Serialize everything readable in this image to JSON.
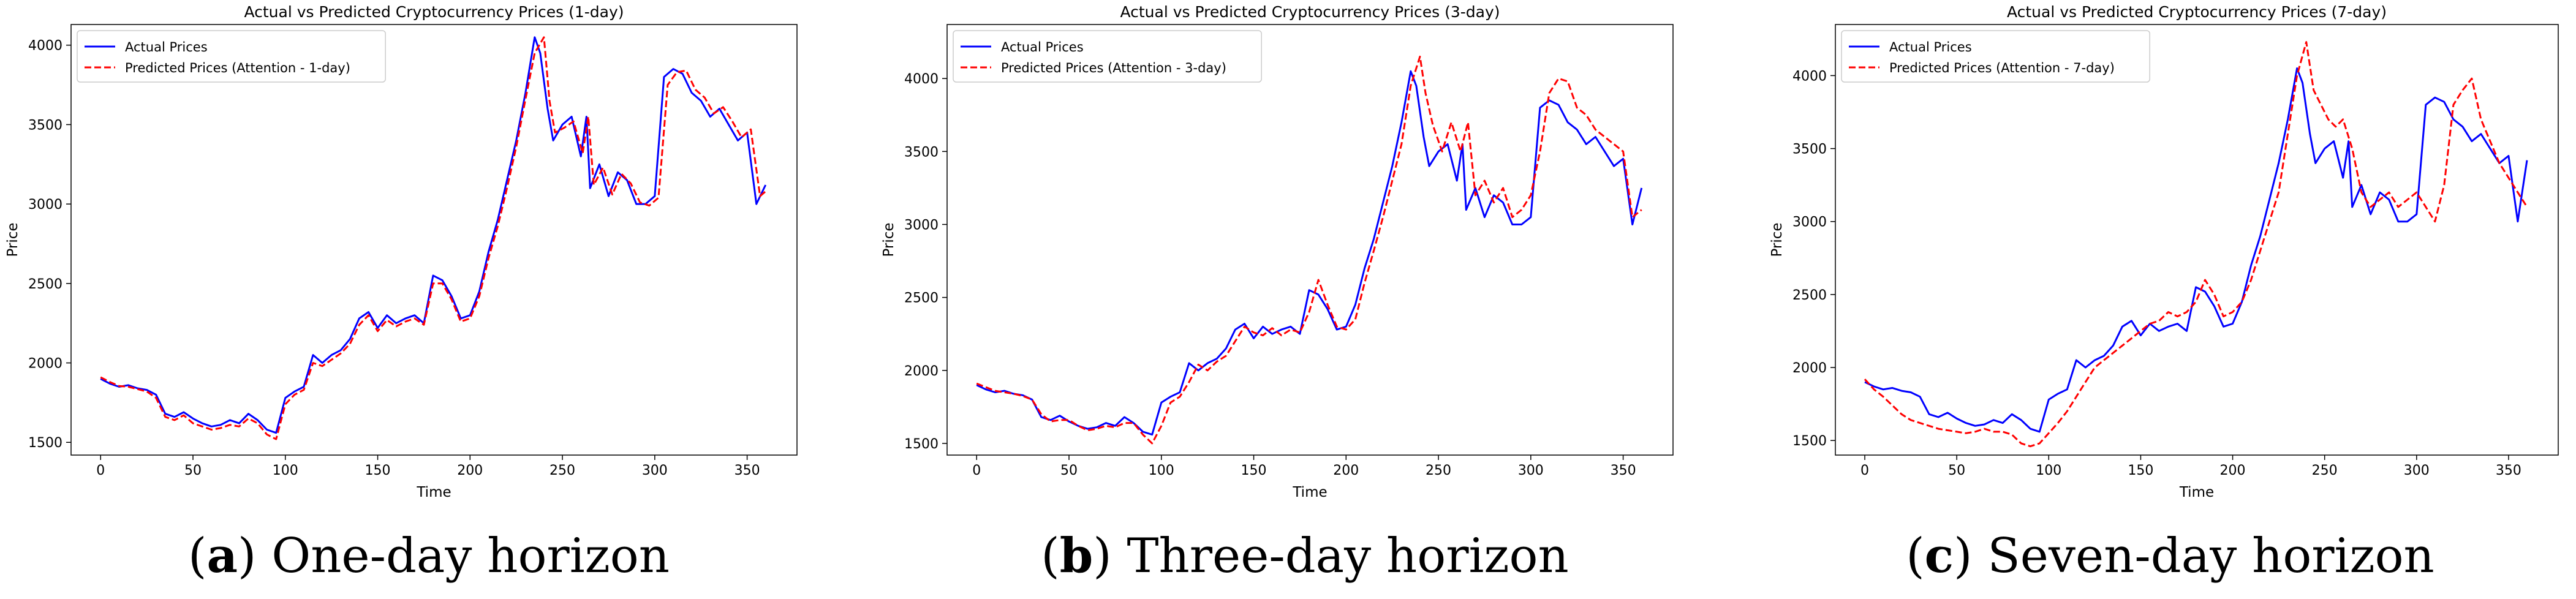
{
  "colors": {
    "actual": "#0000ff",
    "predicted": "#ff0000",
    "axes": "#000000"
  },
  "captions": [
    {
      "letter": "a",
      "text": "One-day horizon"
    },
    {
      "letter": "b",
      "text": "Three-day horizon"
    },
    {
      "letter": "c",
      "text": "Seven-day horizon"
    }
  ],
  "chart_data": [
    {
      "type": "line",
      "title": "Actual vs Predicted Cryptocurrency Prices (1-day)",
      "xlabel": "Time",
      "ylabel": "Price",
      "xlim": [
        -16,
        377
      ],
      "ylim": [
        1420,
        4130
      ],
      "xticks": [
        0,
        50,
        100,
        150,
        200,
        250,
        300,
        350
      ],
      "yticks": [
        1500,
        2000,
        2500,
        3000,
        3500,
        4000
      ],
      "legend_position": "upper left",
      "series": [
        {
          "name": "Actual Prices",
          "style": "solid",
          "x": [
            0,
            5,
            10,
            15,
            20,
            25,
            30,
            35,
            40,
            45,
            50,
            55,
            60,
            65,
            70,
            75,
            80,
            85,
            90,
            95,
            100,
            105,
            110,
            115,
            120,
            125,
            130,
            135,
            140,
            145,
            150,
            155,
            160,
            165,
            170,
            175,
            180,
            185,
            190,
            195,
            200,
            205,
            210,
            215,
            220,
            225,
            230,
            235,
            238,
            242,
            245,
            250,
            255,
            260,
            263,
            265,
            270,
            275,
            280,
            285,
            290,
            295,
            300,
            305,
            310,
            315,
            320,
            325,
            330,
            335,
            340,
            345,
            350,
            355,
            360
          ],
          "values": [
            1900,
            1870,
            1850,
            1860,
            1840,
            1830,
            1800,
            1680,
            1660,
            1690,
            1650,
            1620,
            1600,
            1610,
            1640,
            1620,
            1680,
            1640,
            1580,
            1560,
            1780,
            1820,
            1850,
            2050,
            2000,
            2050,
            2080,
            2150,
            2280,
            2320,
            2220,
            2300,
            2250,
            2280,
            2300,
            2250,
            2550,
            2520,
            2420,
            2280,
            2300,
            2450,
            2700,
            2900,
            3150,
            3400,
            3700,
            4050,
            3950,
            3600,
            3400,
            3500,
            3550,
            3300,
            3550,
            3100,
            3250,
            3050,
            3200,
            3150,
            3000,
            3000,
            3050,
            3800,
            3850,
            3820,
            3700,
            3650,
            3550,
            3600,
            3500,
            3400,
            3450,
            3000,
            3120
          ]
        },
        {
          "name": "Predicted Prices (Attention - 1-day)",
          "style": "dashed",
          "x": [
            0,
            5,
            10,
            15,
            20,
            25,
            30,
            35,
            40,
            45,
            50,
            55,
            60,
            65,
            70,
            75,
            80,
            85,
            90,
            95,
            100,
            105,
            110,
            115,
            120,
            125,
            130,
            135,
            140,
            145,
            150,
            155,
            160,
            165,
            170,
            175,
            180,
            185,
            190,
            195,
            200,
            205,
            210,
            215,
            220,
            225,
            230,
            235,
            240,
            243,
            246,
            251,
            256,
            261,
            264,
            267,
            272,
            277,
            282,
            287,
            292,
            297,
            302,
            307,
            312,
            317,
            322,
            327,
            332,
            337,
            342,
            347,
            352,
            357,
            360
          ],
          "values": [
            1910,
            1880,
            1855,
            1850,
            1835,
            1820,
            1780,
            1660,
            1640,
            1670,
            1620,
            1600,
            1580,
            1590,
            1610,
            1600,
            1650,
            1620,
            1550,
            1520,
            1740,
            1800,
            1830,
            2000,
            1980,
            2020,
            2060,
            2120,
            2240,
            2300,
            2200,
            2270,
            2230,
            2260,
            2280,
            2240,
            2500,
            2500,
            2400,
            2260,
            2280,
            2420,
            2660,
            2860,
            3100,
            3360,
            3660,
            3950,
            4050,
            3650,
            3450,
            3480,
            3520,
            3320,
            3550,
            3120,
            3230,
            3060,
            3190,
            3130,
            3010,
            2990,
            3040,
            3750,
            3830,
            3840,
            3720,
            3670,
            3570,
            3610,
            3520,
            3420,
            3470,
            3050,
            3080
          ]
        }
      ]
    },
    {
      "type": "line",
      "title": "Actual vs Predicted Cryptocurrency Prices (3-day)",
      "xlabel": "Time",
      "ylabel": "Price",
      "xlim": [
        -16,
        377
      ],
      "ylim": [
        1420,
        4370
      ],
      "xticks": [
        0,
        50,
        100,
        150,
        200,
        250,
        300,
        350
      ],
      "yticks": [
        1500,
        2000,
        2500,
        3000,
        3500,
        4000
      ],
      "legend_position": "upper left",
      "series": [
        {
          "name": "Actual Prices",
          "style": "solid",
          "x": [
            0,
            5,
            10,
            15,
            20,
            25,
            30,
            35,
            40,
            45,
            50,
            55,
            60,
            65,
            70,
            75,
            80,
            85,
            90,
            95,
            100,
            105,
            110,
            115,
            120,
            125,
            130,
            135,
            140,
            145,
            150,
            155,
            160,
            165,
            170,
            175,
            180,
            185,
            190,
            195,
            200,
            205,
            210,
            215,
            220,
            225,
            230,
            235,
            238,
            242,
            245,
            250,
            255,
            260,
            263,
            265,
            270,
            275,
            280,
            285,
            290,
            295,
            300,
            305,
            310,
            315,
            320,
            325,
            330,
            335,
            340,
            345,
            350,
            355,
            360
          ],
          "values": [
            1900,
            1870,
            1850,
            1860,
            1840,
            1830,
            1800,
            1680,
            1660,
            1690,
            1650,
            1620,
            1600,
            1610,
            1640,
            1620,
            1680,
            1640,
            1580,
            1560,
            1780,
            1820,
            1850,
            2050,
            2000,
            2050,
            2080,
            2150,
            2280,
            2320,
            2220,
            2300,
            2250,
            2280,
            2300,
            2250,
            2550,
            2520,
            2420,
            2280,
            2300,
            2450,
            2700,
            2900,
            3150,
            3400,
            3700,
            4050,
            3950,
            3600,
            3400,
            3500,
            3550,
            3300,
            3550,
            3100,
            3250,
            3050,
            3200,
            3150,
            3000,
            3000,
            3050,
            3800,
            3850,
            3820,
            3700,
            3650,
            3550,
            3600,
            3500,
            3400,
            3450,
            3000,
            3250
          ]
        },
        {
          "name": "Predicted Prices (Attention - 3-day)",
          "style": "dashed",
          "x": [
            0,
            5,
            10,
            15,
            20,
            25,
            30,
            35,
            40,
            45,
            50,
            55,
            60,
            65,
            70,
            75,
            80,
            85,
            90,
            95,
            100,
            105,
            110,
            115,
            120,
            125,
            130,
            135,
            140,
            145,
            150,
            155,
            160,
            165,
            170,
            175,
            180,
            185,
            190,
            195,
            200,
            205,
            210,
            215,
            220,
            225,
            230,
            235,
            240,
            243,
            247,
            252,
            257,
            262,
            266,
            270,
            275,
            280,
            285,
            290,
            295,
            300,
            305,
            310,
            315,
            320,
            325,
            330,
            335,
            340,
            345,
            350,
            355,
            360
          ],
          "values": [
            1910,
            1885,
            1860,
            1850,
            1840,
            1825,
            1800,
            1700,
            1650,
            1660,
            1660,
            1620,
            1590,
            1600,
            1620,
            1610,
            1640,
            1640,
            1560,
            1500,
            1620,
            1780,
            1820,
            1920,
            2040,
            2000,
            2060,
            2100,
            2200,
            2300,
            2260,
            2240,
            2290,
            2240,
            2280,
            2260,
            2400,
            2620,
            2450,
            2300,
            2280,
            2350,
            2600,
            2820,
            3050,
            3300,
            3550,
            3950,
            4150,
            3900,
            3680,
            3500,
            3700,
            3500,
            3700,
            3200,
            3300,
            3150,
            3250,
            3050,
            3100,
            3200,
            3500,
            3900,
            4000,
            3980,
            3800,
            3750,
            3650,
            3600,
            3550,
            3500,
            3050,
            3100
          ]
        }
      ]
    },
    {
      "type": "line",
      "title": "Actual vs Predicted Cryptocurrency Prices (7-day)",
      "xlabel": "Time",
      "ylabel": "Price",
      "xlim": [
        -16,
        377
      ],
      "ylim": [
        1400,
        4350
      ],
      "xticks": [
        0,
        50,
        100,
        150,
        200,
        250,
        300,
        350
      ],
      "yticks": [
        1500,
        2000,
        2500,
        3000,
        3500,
        4000
      ],
      "legend_position": "upper left",
      "series": [
        {
          "name": "Actual Prices",
          "style": "solid",
          "x": [
            0,
            5,
            10,
            15,
            20,
            25,
            30,
            35,
            40,
            45,
            50,
            55,
            60,
            65,
            70,
            75,
            80,
            85,
            90,
            95,
            100,
            105,
            110,
            115,
            120,
            125,
            130,
            135,
            140,
            145,
            150,
            155,
            160,
            165,
            170,
            175,
            180,
            185,
            190,
            195,
            200,
            205,
            210,
            215,
            220,
            225,
            230,
            235,
            238,
            242,
            245,
            250,
            255,
            260,
            263,
            265,
            270,
            275,
            280,
            285,
            290,
            295,
            300,
            305,
            310,
            315,
            320,
            325,
            330,
            335,
            340,
            345,
            350,
            355,
            360
          ],
          "values": [
            1900,
            1870,
            1850,
            1860,
            1840,
            1830,
            1800,
            1680,
            1660,
            1690,
            1650,
            1620,
            1600,
            1610,
            1640,
            1620,
            1680,
            1640,
            1580,
            1560,
            1780,
            1820,
            1850,
            2050,
            2000,
            2050,
            2080,
            2150,
            2280,
            2320,
            2220,
            2300,
            2250,
            2280,
            2300,
            2250,
            2550,
            2520,
            2420,
            2280,
            2300,
            2450,
            2700,
            2900,
            3150,
            3400,
            3700,
            4050,
            3950,
            3600,
            3400,
            3500,
            3550,
            3300,
            3550,
            3100,
            3250,
            3050,
            3200,
            3150,
            3000,
            3000,
            3050,
            3800,
            3850,
            3820,
            3700,
            3650,
            3550,
            3600,
            3500,
            3400,
            3450,
            3000,
            3420
          ]
        },
        {
          "name": "Predicted Prices (Attention - 7-day)",
          "style": "dashed",
          "x": [
            0,
            5,
            10,
            15,
            20,
            25,
            30,
            35,
            40,
            45,
            50,
            55,
            60,
            65,
            70,
            75,
            80,
            85,
            90,
            95,
            100,
            105,
            110,
            115,
            120,
            125,
            130,
            135,
            140,
            145,
            150,
            155,
            160,
            165,
            170,
            175,
            180,
            185,
            190,
            195,
            200,
            205,
            210,
            215,
            220,
            225,
            230,
            235,
            240,
            244,
            248,
            252,
            256,
            260,
            265,
            270,
            275,
            280,
            285,
            290,
            295,
            300,
            305,
            310,
            315,
            320,
            325,
            330,
            335,
            340,
            345,
            350,
            355,
            360
          ],
          "values": [
            1920,
            1850,
            1800,
            1740,
            1680,
            1640,
            1620,
            1600,
            1580,
            1570,
            1560,
            1550,
            1560,
            1580,
            1560,
            1560,
            1540,
            1480,
            1460,
            1480,
            1550,
            1620,
            1700,
            1800,
            1900,
            2000,
            2050,
            2100,
            2150,
            2200,
            2250,
            2300,
            2320,
            2380,
            2350,
            2380,
            2450,
            2600,
            2500,
            2350,
            2380,
            2450,
            2600,
            2800,
            3000,
            3200,
            3600,
            4000,
            4230,
            3900,
            3800,
            3700,
            3650,
            3700,
            3500,
            3200,
            3100,
            3150,
            3200,
            3100,
            3150,
            3200,
            3100,
            3000,
            3250,
            3800,
            3900,
            3980,
            3700,
            3550,
            3400,
            3300,
            3200,
            3100
          ]
        }
      ]
    }
  ]
}
